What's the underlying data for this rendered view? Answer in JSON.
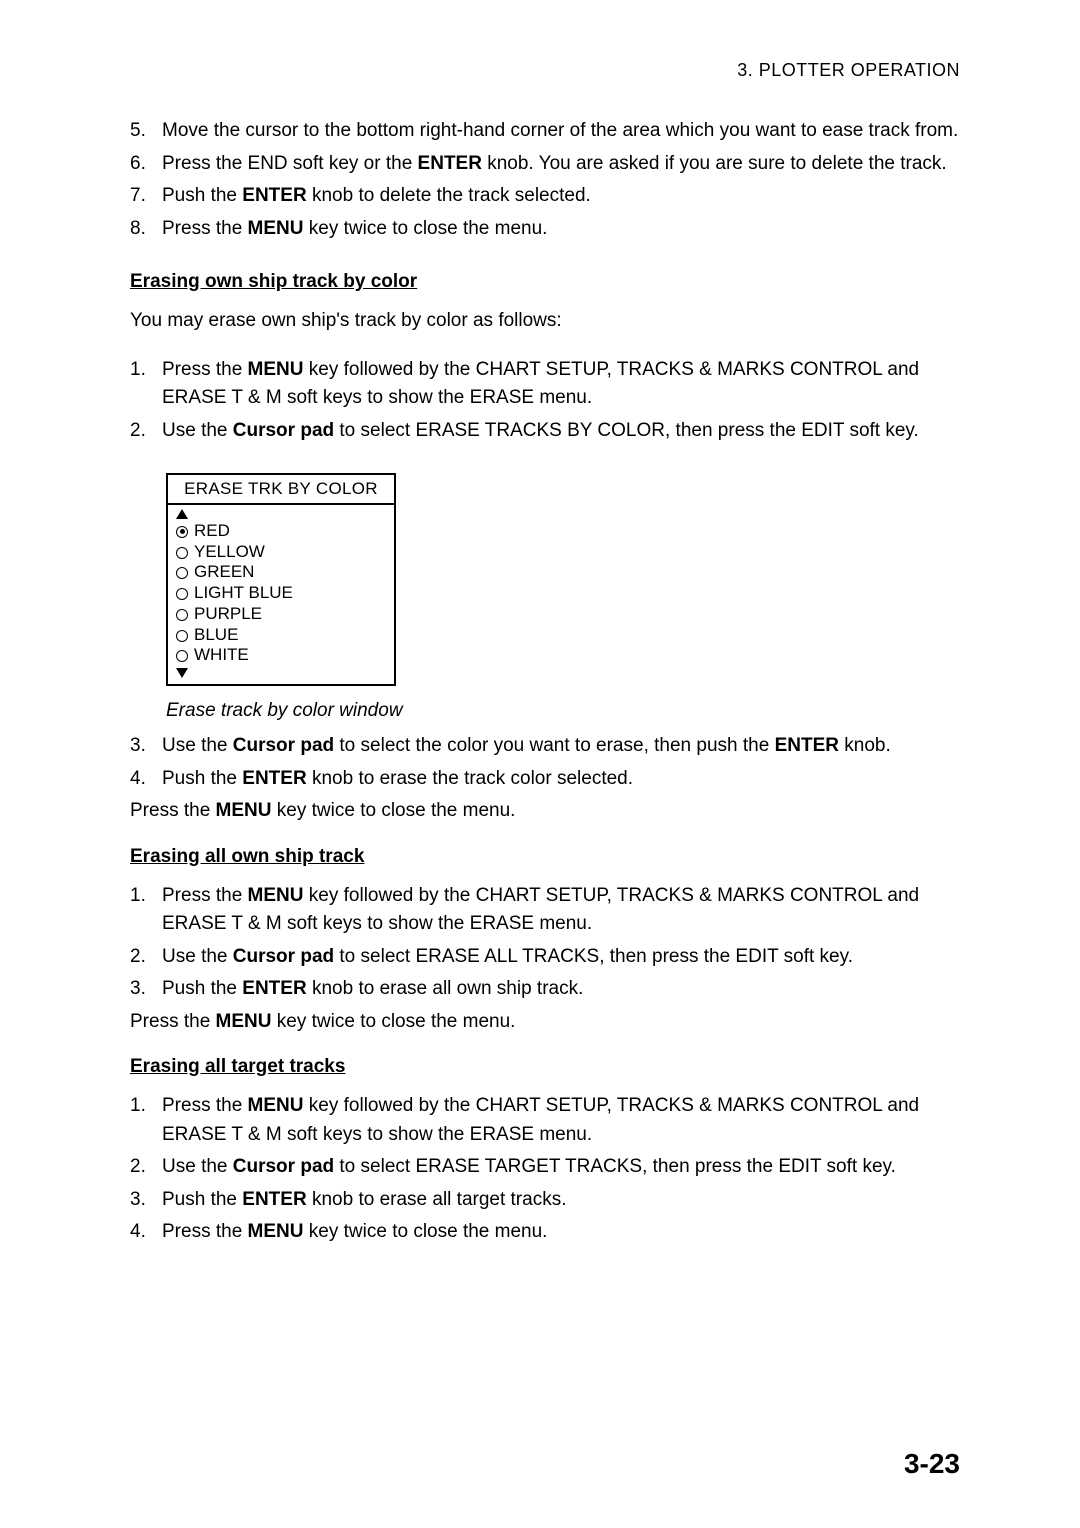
{
  "header": "3.  PLOTTER  OPERATION",
  "list1": [
    {
      "n": "5.",
      "pre": "Move the cursor to the bottom right-hand corner of the area which you want to ease track from."
    },
    {
      "n": "6.",
      "parts": [
        "Press the END soft key or the ",
        "ENTER",
        " knob. You are asked if you are sure to delete the track."
      ]
    },
    {
      "n": "7.",
      "parts": [
        "Push the ",
        "ENTER",
        " knob to delete the track selected."
      ]
    },
    {
      "n": "8.",
      "parts": [
        "Press the ",
        "MENU",
        " key twice to close the menu."
      ]
    }
  ],
  "sec1": {
    "title": "Erasing own ship track by color",
    "intro": "You may erase own ship's track by color as follows:",
    "steps": [
      {
        "n": "1.",
        "parts": [
          "Press the ",
          "MENU",
          " key followed by the CHART SETUP, TRACKS & MARKS CONTROL and ERASE T & M soft keys to show the ERASE menu."
        ]
      },
      {
        "n": "2.",
        "parts": [
          "Use the ",
          "Cursor pad",
          " to select ERASE TRACKS BY COLOR, then press the EDIT soft key."
        ]
      }
    ],
    "diagram": {
      "title": "ERASE TRK BY COLOR",
      "items": [
        {
          "label": "RED",
          "selected": true
        },
        {
          "label": "YELLOW",
          "selected": false
        },
        {
          "label": "GREEN",
          "selected": false
        },
        {
          "label": "LIGHT BLUE",
          "selected": false
        },
        {
          "label": "PURPLE",
          "selected": false
        },
        {
          "label": "BLUE",
          "selected": false
        },
        {
          "label": "WHITE",
          "selected": false
        }
      ]
    },
    "caption": "Erase track by color window",
    "steps2": [
      {
        "n": "3.",
        "parts": [
          "Use the ",
          "Cursor pad",
          " to select the color you want to erase, then push the ",
          "ENTER",
          " knob."
        ]
      },
      {
        "n": "4.",
        "parts": [
          "Push the ",
          "ENTER",
          " knob to erase the track color selected."
        ]
      }
    ],
    "closing": [
      "Press the ",
      "MENU",
      " key twice to close the menu."
    ]
  },
  "sec2": {
    "title": "Erasing all own ship track",
    "steps": [
      {
        "n": "1.",
        "parts": [
          "Press the ",
          "MENU",
          " key followed by the CHART SETUP, TRACKS & MARKS CONTROL and ERASE T & M soft keys to show the ERASE menu."
        ]
      },
      {
        "n": "2.",
        "parts": [
          "Use the ",
          "Cursor pad",
          " to select ERASE ALL TRACKS, then press the EDIT soft key."
        ]
      },
      {
        "n": "3.",
        "parts": [
          "Push the ",
          "ENTER",
          " knob to erase all own ship track."
        ]
      }
    ],
    "closing": [
      "Press the ",
      "MENU",
      " key twice to close the menu."
    ]
  },
  "sec3": {
    "title": "Erasing all target tracks",
    "steps": [
      {
        "n": "1.",
        "parts": [
          "Press the ",
          "MENU",
          " key followed by the CHART SETUP, TRACKS & MARKS CONTROL and ERASE T & M soft keys to show the ERASE menu."
        ]
      },
      {
        "n": "2.",
        "parts": [
          "Use the ",
          "Cursor pad",
          " to select ERASE TARGET TRACKS, then press the EDIT soft key."
        ]
      },
      {
        "n": "3.",
        "parts": [
          "Push the ",
          "ENTER",
          " knob to erase all target tracks."
        ]
      },
      {
        "n": "4.",
        "parts": [
          "Press the ",
          "MENU",
          " key twice to close the menu."
        ]
      }
    ]
  },
  "pageNumber": "3-23"
}
